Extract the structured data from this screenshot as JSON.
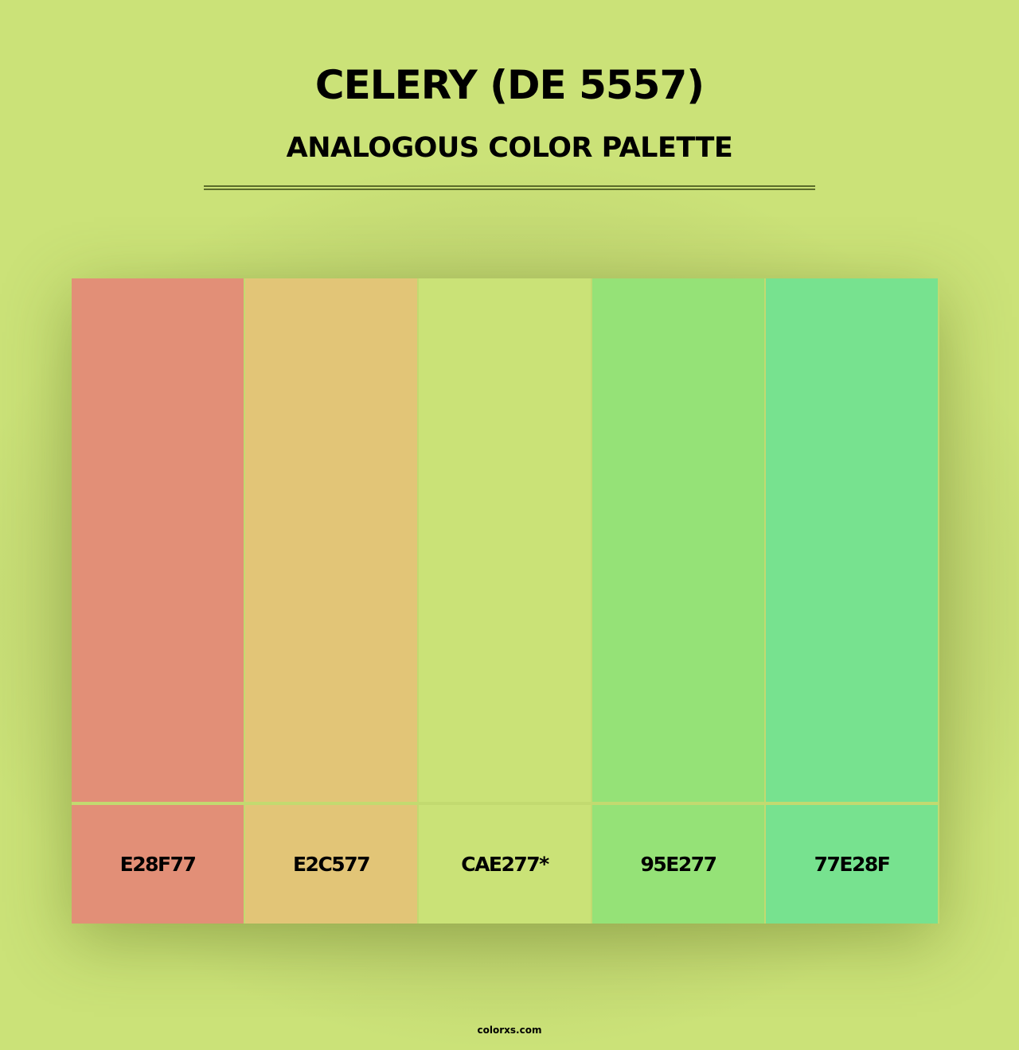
{
  "title": "CELERY (DE 5557)",
  "subtitle": "ANALOGOUS COLOR PALETTE",
  "swatches": [
    {
      "label": "E28F77",
      "color": "#E28F77"
    },
    {
      "label": "E2C577",
      "color": "#E2C577"
    },
    {
      "label": "CAE277*",
      "color": "#CAE277"
    },
    {
      "label": "95E277",
      "color": "#95E277"
    },
    {
      "label": "77E28F",
      "color": "#77E28F"
    }
  ],
  "footer": "colorxs.com"
}
